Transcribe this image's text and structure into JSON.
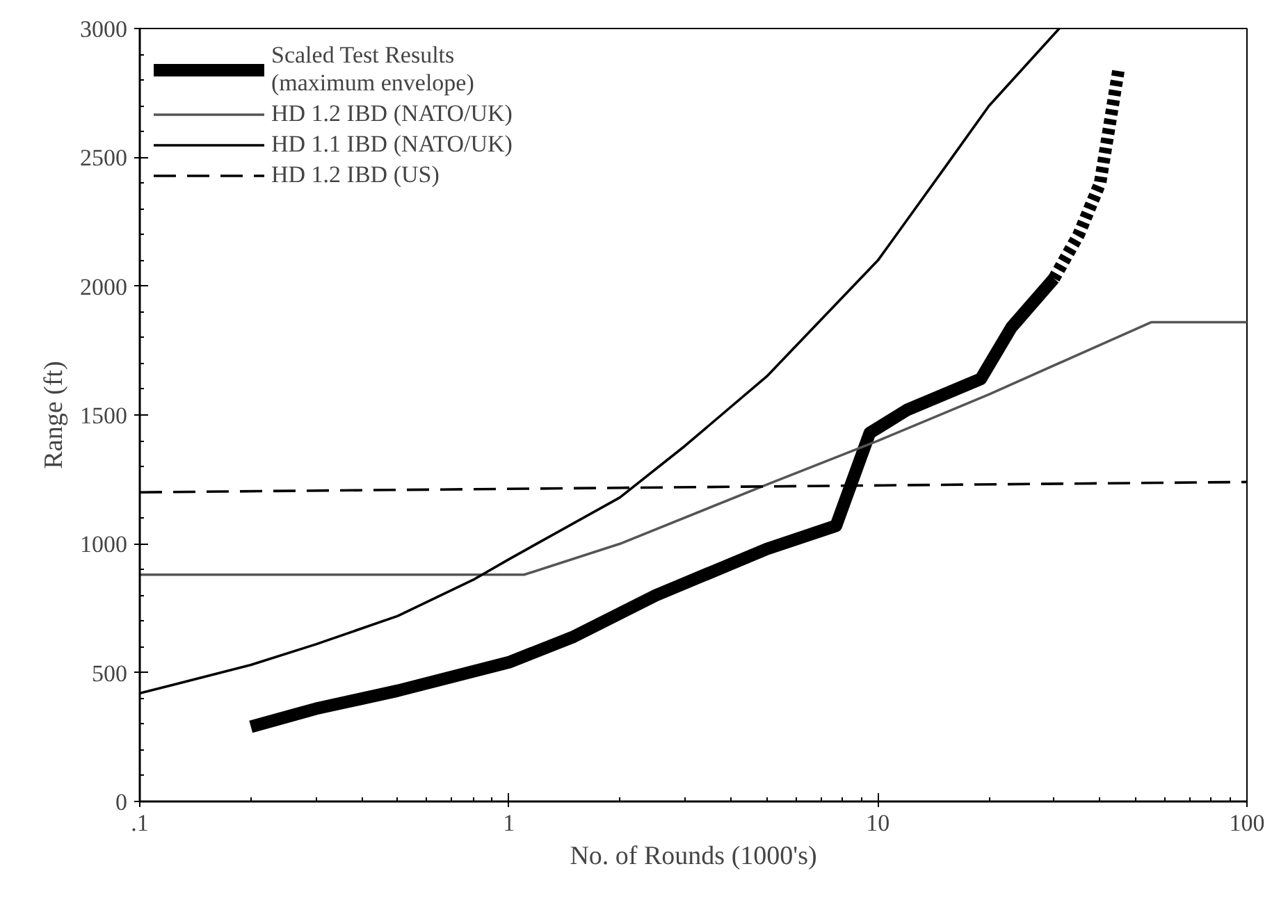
{
  "chart_data": {
    "type": "line",
    "xlabel": "No. of Rounds (1000's)",
    "ylabel": "Range (ft)",
    "log": "x",
    "xlim": [
      0.1,
      100
    ],
    "xticks": [
      {
        "value": 0.1,
        "label": ".1"
      },
      1,
      10,
      100
    ],
    "ylim": [
      0,
      3000
    ],
    "yticks": [
      0,
      500,
      1000,
      1500,
      2000,
      2500,
      3000
    ],
    "grid": false,
    "legend": "top left",
    "marker": "none",
    "series": [
      {
        "name": "Scaled Test Results\n(maximum envelope)",
        "color": "#000000",
        "line_style": "solid",
        "x": [
          0.2,
          0.3,
          0.5,
          1,
          1.5,
          2.5,
          5,
          7.7,
          9.5,
          12,
          19,
          23,
          30
        ],
        "values": [
          290,
          360,
          430,
          540,
          640,
          800,
          980,
          1070,
          1430,
          1520,
          1640,
          1840,
          2030
        ]
      },
      {
        "color": "#000000",
        "line_style": "dotted",
        "x": [
          30,
          35,
          40,
          45
        ],
        "values": [
          2030,
          2200,
          2400,
          2850
        ]
      },
      {
        "name": "HD 1.2 IBD (NATO/UK)",
        "color": "#555555",
        "line_style": "solid",
        "x": [
          0.1,
          1.1,
          2,
          5,
          10,
          20,
          55,
          100
        ],
        "values": [
          880,
          880,
          1000,
          1230,
          1400,
          1580,
          1860,
          1860
        ]
      },
      {
        "name": "HD 1.1 IBD (NATO/UK)",
        "color": "#000000",
        "line_style": "solid",
        "x": [
          0.1,
          0.2,
          0.3,
          0.5,
          0.8,
          1,
          2,
          3,
          5,
          10,
          15,
          20,
          31
        ],
        "values": [
          420,
          530,
          610,
          720,
          860,
          940,
          1180,
          1380,
          1650,
          2100,
          2450,
          2700,
          3000
        ]
      },
      {
        "name": "HD 1.2 IBD (US)",
        "color": "#000000",
        "line_style": "dashed",
        "x": [
          0.1,
          100
        ],
        "values": [
          1200,
          1240
        ]
      }
    ]
  }
}
